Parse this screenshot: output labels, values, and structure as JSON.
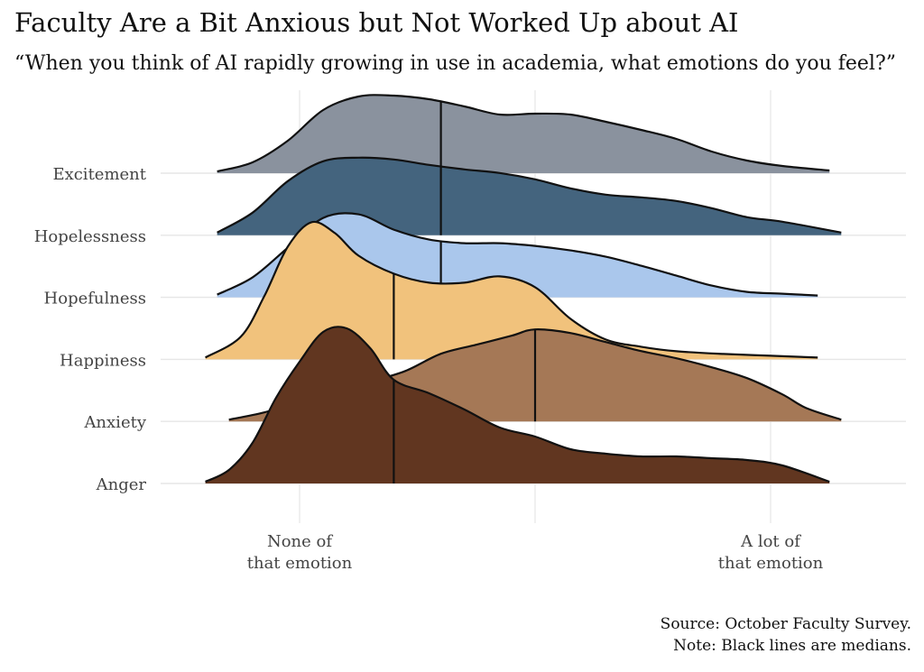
{
  "title": "Faculty Are a Bit Anxious but Not Worked Up about AI",
  "subtitle": "“When you think of AI rapidly growing in use in academia, what emotions do you feel?”",
  "caption": {
    "source": "Source: October Faculty Survey.",
    "note": "Note: Black lines are medians."
  },
  "chart_data": {
    "type": "ridgeline",
    "xlabel": "",
    "ylabel": "",
    "x_range": [
      0,
      4
    ],
    "x_ticks": [
      {
        "value": 0,
        "label": [
          "None of",
          "that emotion"
        ]
      },
      {
        "value": 2,
        "label": []
      },
      {
        "value": 4,
        "label": [
          "A lot of",
          "that emotion"
        ]
      }
    ],
    "grid": true,
    "series": [
      {
        "name": "Excitement",
        "color": "#8a929e",
        "median": 1.2,
        "x": [
          -0.7,
          -0.4,
          -0.1,
          0.2,
          0.5,
          0.8,
          1.1,
          1.4,
          1.7,
          2.0,
          2.3,
          2.6,
          2.9,
          3.2,
          3.5,
          3.8,
          4.1,
          4.5
        ],
        "density": [
          0.02,
          0.12,
          0.36,
          0.7,
          0.85,
          0.86,
          0.82,
          0.74,
          0.65,
          0.66,
          0.65,
          0.57,
          0.48,
          0.38,
          0.24,
          0.14,
          0.08,
          0.03
        ]
      },
      {
        "name": "Hopelessness",
        "color": "#44647e",
        "median": 1.2,
        "x": [
          -0.7,
          -0.4,
          -0.1,
          0.2,
          0.5,
          0.8,
          1.1,
          1.4,
          1.7,
          2.0,
          2.3,
          2.6,
          2.9,
          3.2,
          3.5,
          3.8,
          4.1,
          4.6
        ],
        "density": [
          0.03,
          0.25,
          0.6,
          0.82,
          0.86,
          0.84,
          0.78,
          0.73,
          0.69,
          0.62,
          0.52,
          0.45,
          0.42,
          0.38,
          0.3,
          0.2,
          0.15,
          0.03
        ]
      },
      {
        "name": "Hopefulness",
        "color": "#aac7ec",
        "median": 1.2,
        "x": [
          -0.7,
          -0.4,
          -0.1,
          0.2,
          0.5,
          0.8,
          1.1,
          1.4,
          1.7,
          2.0,
          2.3,
          2.6,
          2.9,
          3.2,
          3.5,
          3.8,
          4.1,
          4.4
        ],
        "density": [
          0.03,
          0.22,
          0.55,
          0.88,
          0.92,
          0.75,
          0.64,
          0.6,
          0.6,
          0.57,
          0.52,
          0.45,
          0.35,
          0.24,
          0.13,
          0.06,
          0.04,
          0.02
        ]
      },
      {
        "name": "Happiness",
        "color": "#f1c27c",
        "median": 0.8,
        "x": [
          -0.8,
          -0.5,
          -0.3,
          -0.1,
          0.1,
          0.3,
          0.5,
          0.8,
          1.1,
          1.4,
          1.7,
          2.0,
          2.3,
          2.6,
          2.9,
          3.2,
          3.6,
          4.0,
          4.4
        ],
        "density": [
          0.02,
          0.25,
          0.7,
          1.25,
          1.52,
          1.4,
          1.15,
          0.95,
          0.85,
          0.85,
          0.92,
          0.8,
          0.45,
          0.22,
          0.14,
          0.09,
          0.06,
          0.04,
          0.02
        ]
      },
      {
        "name": "Anxiety",
        "color": "#a57856",
        "median": 2.0,
        "x": [
          -0.6,
          -0.3,
          0.0,
          0.3,
          0.6,
          0.9,
          1.2,
          1.5,
          1.8,
          2.0,
          2.3,
          2.6,
          2.9,
          3.2,
          3.5,
          3.8,
          4.1,
          4.3,
          4.6
        ],
        "density": [
          0.02,
          0.1,
          0.22,
          0.33,
          0.44,
          0.56,
          0.75,
          0.85,
          0.95,
          1.02,
          0.98,
          0.88,
          0.78,
          0.7,
          0.6,
          0.48,
          0.3,
          0.15,
          0.02
        ]
      },
      {
        "name": "Anger",
        "color": "#613620",
        "median": 0.8,
        "x": [
          -0.8,
          -0.6,
          -0.4,
          -0.2,
          0.0,
          0.2,
          0.4,
          0.6,
          0.8,
          1.1,
          1.4,
          1.7,
          2.0,
          2.3,
          2.6,
          2.9,
          3.2,
          3.5,
          3.8,
          4.1,
          4.5
        ],
        "density": [
          0.02,
          0.15,
          0.45,
          0.95,
          1.35,
          1.68,
          1.72,
          1.5,
          1.15,
          1.0,
          0.82,
          0.62,
          0.52,
          0.38,
          0.33,
          0.3,
          0.3,
          0.28,
          0.26,
          0.2,
          0.02
        ]
      }
    ]
  }
}
